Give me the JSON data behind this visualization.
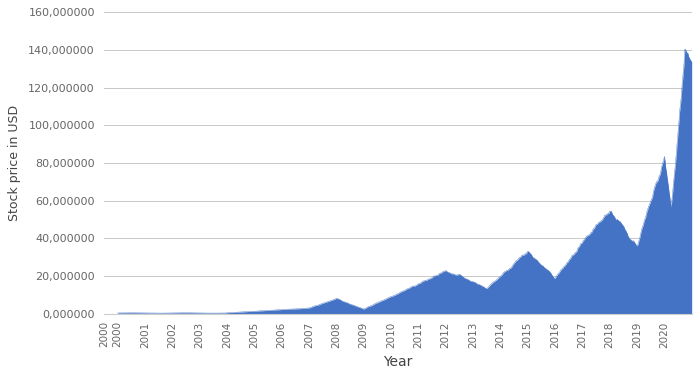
{
  "title": "",
  "xlabel": "Year",
  "ylabel": "Stock price in USD",
  "fill_color": "#4472C4",
  "line_color": "#4472C4",
  "background_color": "#ffffff",
  "grid_color": "#c8c8c8",
  "ylim": [
    0,
    160000000
  ],
  "yticks": [
    0,
    20000000,
    40000000,
    60000000,
    80000000,
    100000000,
    120000000,
    140000000,
    160000000
  ],
  "xlim_start": 1999.5,
  "xlim_end": 2021.0,
  "xtick_years": [
    2000,
    2000,
    2001,
    2002,
    2003,
    2004,
    2005,
    2006,
    2007,
    2008,
    2009,
    2010,
    2011,
    2012,
    2013,
    2014,
    2015,
    2016,
    2017,
    2018,
    2019,
    2020
  ],
  "seed": 42
}
